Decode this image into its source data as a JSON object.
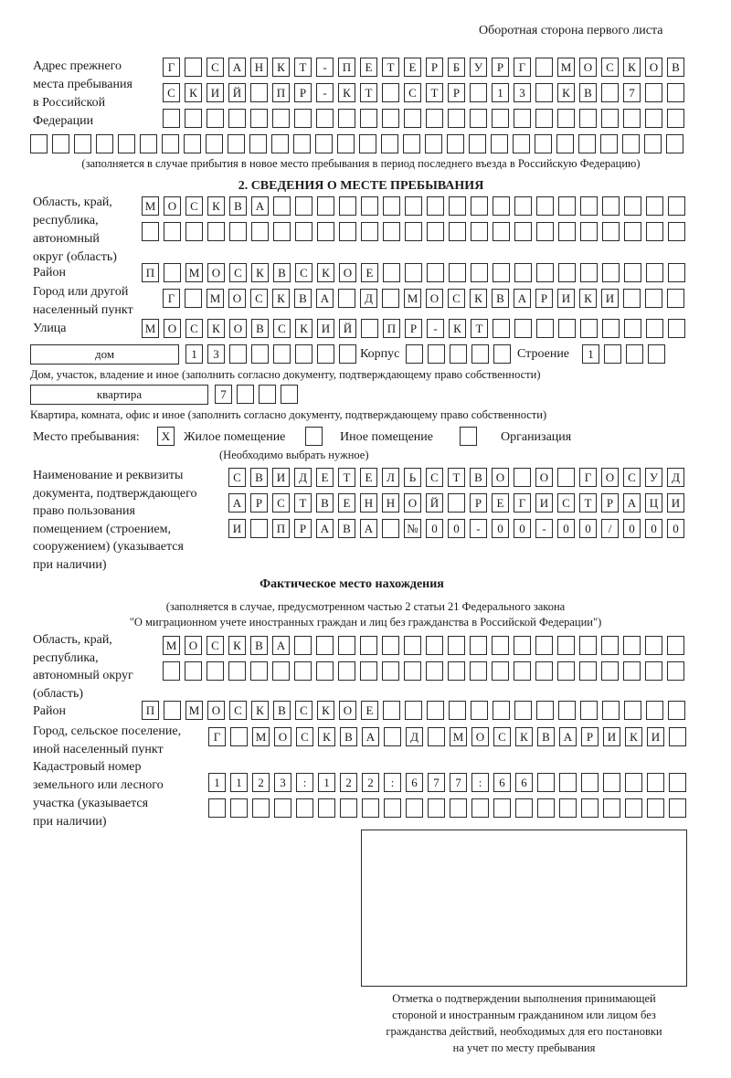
{
  "header": "Оборотная сторона первого листа",
  "prev_address": {
    "label": [
      "Адрес прежнего",
      "места пребывания",
      "в Российской",
      "Федерации"
    ],
    "rows": [
      [
        "Г",
        "",
        "С",
        "А",
        "Н",
        "К",
        "Т",
        "-",
        "П",
        "Е",
        "Т",
        "Е",
        "Р",
        "Б",
        "У",
        "Р",
        "Г",
        "",
        "М",
        "О",
        "С",
        "К",
        "О",
        "В"
      ],
      [
        "С",
        "К",
        "И",
        "Й",
        "",
        "П",
        "Р",
        "-",
        "К",
        "Т",
        "",
        "С",
        "Т",
        "Р",
        "",
        "1",
        "3",
        "",
        "К",
        "В",
        "",
        "7",
        "",
        ""
      ],
      [
        "",
        "",
        "",
        "",
        "",
        "",
        "",
        "",
        "",
        "",
        "",
        "",
        "",
        "",
        "",
        "",
        "",
        "",
        "",
        "",
        "",
        "",
        "",
        ""
      ],
      [
        "",
        "",
        "",
        "",
        "",
        "",
        "",
        "",
        "",
        "",
        "",
        "",
        "",
        "",
        "",
        "",
        "",
        "",
        "",
        "",
        "",
        "",
        "",
        "",
        "",
        "",
        "",
        "",
        "",
        ""
      ]
    ],
    "note": "(заполняется в случае прибытия в новое место пребывания в период последнего въезда в Российскую Федерацию)"
  },
  "section2": {
    "title": "2. СВЕДЕНИЯ О МЕСТЕ ПРЕБЫВАНИЯ",
    "region_label": [
      "Область, край,",
      "республика,",
      "автономный",
      "округ (область)"
    ],
    "region_rows": [
      [
        "М",
        "О",
        "С",
        "К",
        "В",
        "А",
        "",
        "",
        "",
        "",
        "",
        "",
        "",
        "",
        "",
        "",
        "",
        "",
        "",
        "",
        "",
        "",
        "",
        "",
        ""
      ],
      [
        "",
        "",
        "",
        "",
        "",
        "",
        "",
        "",
        "",
        "",
        "",
        "",
        "",
        "",
        "",
        "",
        "",
        "",
        "",
        "",
        "",
        "",
        "",
        "",
        ""
      ]
    ],
    "district_label": "Район",
    "district": [
      "П",
      "",
      "М",
      "О",
      "С",
      "К",
      "В",
      "С",
      "К",
      "О",
      "Е",
      "",
      "",
      "",
      "",
      "",
      "",
      "",
      "",
      "",
      "",
      "",
      "",
      "",
      ""
    ],
    "city_label": [
      "Город или другой",
      "населенный пункт"
    ],
    "city": [
      "Г",
      "",
      "М",
      "О",
      "С",
      "К",
      "В",
      "А",
      "",
      "Д",
      "",
      "М",
      "О",
      "С",
      "К",
      "В",
      "А",
      "Р",
      "И",
      "К",
      "И",
      "",
      "",
      ""
    ],
    "street_label": "Улица",
    "street": [
      "М",
      "О",
      "С",
      "К",
      "О",
      "В",
      "С",
      "К",
      "И",
      "Й",
      "",
      "П",
      "Р",
      "-",
      "К",
      "Т",
      "",
      "",
      "",
      "",
      "",
      "",
      "",
      "",
      ""
    ],
    "house_type": "дом",
    "house": [
      "1",
      "3",
      "",
      "",
      "",
      "",
      "",
      ""
    ],
    "corpus_label": "Корпус",
    "corpus": [
      "",
      "",
      "",
      "",
      ""
    ],
    "building_label": "Строение",
    "building": [
      "1",
      "",
      "",
      ""
    ],
    "house_note": "Дом, участок, владение и иное (заполнить согласно документу, подтверждающему право собственности)",
    "flat_type": "квартира",
    "flat": [
      "7",
      "",
      "",
      ""
    ],
    "flat_note": "Квартира, комната, офис и иное (заполнить согласно документу, подтверждающему право собственности)",
    "stay_label": "Место пребывания:",
    "stay_options": [
      {
        "label": "Жилое помещение",
        "mark": "X"
      },
      {
        "label": "Иное помещение",
        "mark": ""
      },
      {
        "label": "Организация",
        "mark": ""
      }
    ],
    "stay_note": "(Необходимо выбрать нужное)",
    "doc_label": [
      "Наименование и реквизиты",
      "документа, подтверждающего",
      "право пользования",
      "помещением (строением,",
      "сооружением) (указывается",
      "при наличии)"
    ],
    "doc_rows": [
      [
        "С",
        "В",
        "И",
        "Д",
        "Е",
        "Т",
        "Е",
        "Л",
        "Ь",
        "С",
        "Т",
        "В",
        "О",
        "",
        "О",
        "",
        "Г",
        "О",
        "С",
        "У",
        "Д"
      ],
      [
        "А",
        "Р",
        "С",
        "Т",
        "В",
        "Е",
        "Н",
        "Н",
        "О",
        "Й",
        "",
        "Р",
        "Е",
        "Г",
        "И",
        "С",
        "Т",
        "Р",
        "А",
        "Ц",
        "И"
      ],
      [
        "И",
        "",
        "П",
        "Р",
        "А",
        "В",
        "А",
        "",
        "№",
        "0",
        "0",
        "-",
        "0",
        "0",
        "-",
        "0",
        "0",
        "/",
        "0",
        "0",
        "0"
      ]
    ]
  },
  "actual": {
    "title": "Фактическое место нахождения",
    "note": [
      "(заполняется в случае, предусмотренном частью 2 статьи 21 Федерального закона",
      "\"О миграционном учете иностранных граждан и лиц без гражданства в Российской Федерации\")"
    ],
    "region_label": [
      "Область, край,",
      "республика,",
      "автономный округ",
      "(область)"
    ],
    "region_rows": [
      [
        "М",
        "О",
        "С",
        "К",
        "В",
        "А",
        "",
        "",
        "",
        "",
        "",
        "",
        "",
        "",
        "",
        "",
        "",
        "",
        "",
        "",
        "",
        "",
        "",
        ""
      ],
      [
        "",
        "",
        "",
        "",
        "",
        "",
        "",
        "",
        "",
        "",
        "",
        "",
        "",
        "",
        "",
        "",
        "",
        "",
        "",
        "",
        "",
        "",
        "",
        ""
      ]
    ],
    "district_label": "Район",
    "district": [
      "П",
      "",
      "М",
      "О",
      "С",
      "К",
      "В",
      "С",
      "К",
      "О",
      "Е",
      "",
      "",
      "",
      "",
      "",
      "",
      "",
      "",
      "",
      "",
      "",
      "",
      "",
      ""
    ],
    "city_label": [
      "Город, сельское поселение,",
      "иной населенный пункт"
    ],
    "city": [
      "Г",
      "",
      "М",
      "О",
      "С",
      "К",
      "В",
      "А",
      "",
      "Д",
      "",
      "М",
      "О",
      "С",
      "К",
      "В",
      "А",
      "Р",
      "И",
      "К",
      "И",
      ""
    ],
    "cadastral_label": [
      "Кадастровый номер",
      "земельного или лесного",
      "участка (указывается",
      "при наличии)"
    ],
    "cadastral_rows": [
      [
        "1",
        "1",
        "2",
        "3",
        ":",
        "1",
        "2",
        "2",
        ":",
        "6",
        "7",
        "7",
        ":",
        "6",
        "6",
        "",
        "",
        "",
        "",
        "",
        "",
        ""
      ],
      [
        "",
        "",
        "",
        "",
        "",
        "",
        "",
        "",
        "",
        "",
        "",
        "",
        "",
        "",
        "",
        "",
        "",
        "",
        "",
        "",
        "",
        ""
      ]
    ]
  },
  "stamp_caption": [
    "Отметка о подтверждении выполнения принимающей",
    "стороной и иностранным гражданином или лицом без",
    "гражданства действий, необходимых для его постановки",
    "на учет по месту пребывания"
  ]
}
